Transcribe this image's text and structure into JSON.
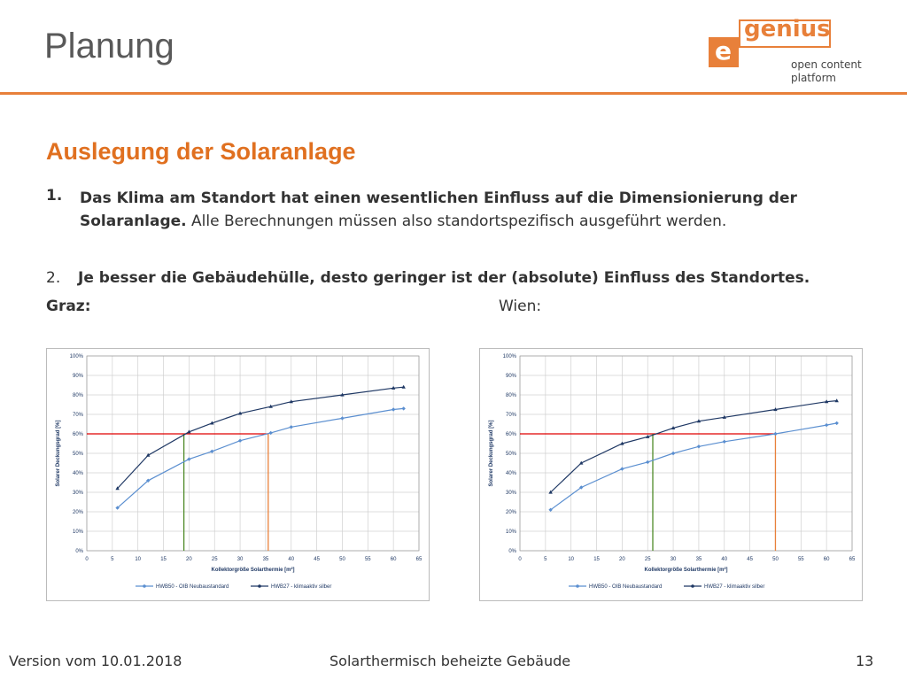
{
  "header": {
    "title": "Planung"
  },
  "logo": {
    "letter": "e",
    "word": "genius",
    "tagline_1": "open content",
    "tagline_2": "platform"
  },
  "section": {
    "heading": "Auslegung der Solaranlage",
    "point_1": {
      "number": "1.",
      "bold": "Das Klima am Standort hat einen wesentlichen Einfluss auf die Dimensionierung der Solaranlage.",
      "normal": "Alle Berechnungen müssen also standortspezifisch ausgeführt werden."
    },
    "point_2": {
      "number": "2.",
      "bold": "Je besser die Gebäudehülle, desto geringer ist der (absolute) Einfluss des Standortes."
    },
    "label_left": "Graz:",
    "label_right": "Wien:"
  },
  "footer": {
    "version": "Version vom  10.01.2018",
    "topic": "Solarthermisch beheizte Gebäude",
    "page": "13"
  },
  "chart_data": [
    {
      "type": "line",
      "x_label": "Kollektorgröße Solarthermie [m²]",
      "y_label": "Solarer Deckungsgrad [%]",
      "xlim": [
        0,
        65
      ],
      "ylim": [
        0,
        100
      ],
      "xticks": [
        0,
        5,
        10,
        15,
        20,
        25,
        30,
        35,
        40,
        45,
        50,
        55,
        60,
        65
      ],
      "yticks": [
        {
          "value": 0,
          "label": "0%"
        },
        {
          "value": 10,
          "label": "10%"
        },
        {
          "value": 20,
          "label": "20%"
        },
        {
          "value": 30,
          "label": "30%"
        },
        {
          "value": 40,
          "label": "40%"
        },
        {
          "value": 50,
          "label": "50%"
        },
        {
          "value": 60,
          "label": "60%"
        },
        {
          "value": 70,
          "label": "70%"
        },
        {
          "value": 80,
          "label": "80%"
        },
        {
          "value": 90,
          "label": "90%"
        },
        {
          "value": 100,
          "label": "100%"
        }
      ],
      "grid": true,
      "legend": "bottom",
      "x": [
        6,
        12,
        20,
        24.5,
        30,
        36,
        40,
        50,
        60,
        62
      ],
      "series": [
        {
          "name": "HWB50 - OIB Neubaustandard",
          "color": "#5b8fd0",
          "values": [
            22,
            36,
            47,
            51,
            56.5,
            60.5,
            63.5,
            68,
            72.5,
            73
          ]
        },
        {
          "name": "HWB27 - klimaaktiv silber",
          "color": "#1f3864",
          "values": [
            32,
            49,
            61,
            65.5,
            70.5,
            74,
            76.5,
            80,
            83.5,
            84
          ]
        }
      ],
      "guides": {
        "y": 60,
        "y_color": "#e00000",
        "x": [
          {
            "value": 19,
            "color": "#4e8a28"
          },
          {
            "value": 35.5,
            "color": "#e8803a"
          }
        ]
      }
    },
    {
      "type": "line",
      "x_label": "Kollektorgröße Solarthermie [m²]",
      "y_label": "Solarer Deckungsgrad [%]",
      "xlim": [
        0,
        65
      ],
      "ylim": [
        0,
        100
      ],
      "xticks": [
        0,
        5,
        10,
        15,
        20,
        25,
        30,
        35,
        40,
        45,
        50,
        55,
        60,
        65
      ],
      "yticks": [
        {
          "value": 0,
          "label": "0%"
        },
        {
          "value": 10,
          "label": "10%"
        },
        {
          "value": 20,
          "label": "20%"
        },
        {
          "value": 30,
          "label": "30%"
        },
        {
          "value": 40,
          "label": "40%"
        },
        {
          "value": 50,
          "label": "50%"
        },
        {
          "value": 60,
          "label": "60%"
        },
        {
          "value": 70,
          "label": "70%"
        },
        {
          "value": 80,
          "label": "80%"
        },
        {
          "value": 90,
          "label": "90%"
        },
        {
          "value": 100,
          "label": "100%"
        }
      ],
      "grid": true,
      "legend": "bottom",
      "x": [
        6,
        12,
        20,
        25,
        30,
        35,
        40,
        50,
        60,
        62
      ],
      "series": [
        {
          "name": "HWB50 - OIB Neubaustandard",
          "color": "#5b8fd0",
          "values": [
            21,
            32.5,
            42,
            45.5,
            50,
            53.5,
            56,
            60,
            64.5,
            65.5
          ]
        },
        {
          "name": "HWB27 - klimaaktiv silber",
          "color": "#1f3864",
          "values": [
            30,
            45,
            55,
            58.5,
            63,
            66.5,
            68.5,
            72.5,
            76.5,
            77
          ]
        }
      ],
      "guides": {
        "y": 60,
        "y_color": "#e00000",
        "x": [
          {
            "value": 26,
            "color": "#4e8a28"
          },
          {
            "value": 50,
            "color": "#e8803a"
          }
        ]
      }
    }
  ]
}
